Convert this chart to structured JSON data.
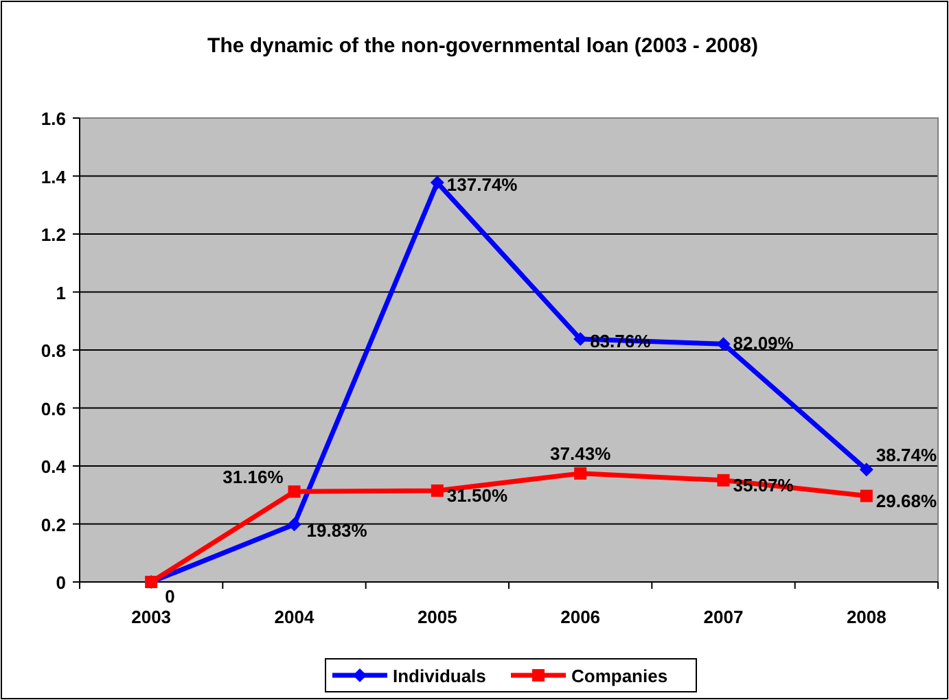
{
  "chart_data": {
    "type": "line",
    "title": "The dynamic of the non-governmental loan (2003 - 2008)",
    "categories": [
      "2003",
      "2004",
      "2005",
      "2006",
      "2007",
      "2008"
    ],
    "series": [
      {
        "name": "Individuals",
        "color": "#0000ff",
        "marker": "diamond",
        "values": [
          0,
          0.1983,
          1.3774,
          0.8376,
          0.8209,
          0.3874
        ],
        "value_labels": [
          "0",
          "19.83%",
          "137.74%",
          "83.76%",
          "82.09%",
          "38.74%"
        ]
      },
      {
        "name": "Companies",
        "color": "#ff0000",
        "marker": "square",
        "values": [
          0,
          0.3116,
          0.315,
          0.3743,
          0.3507,
          0.2968
        ],
        "value_labels": [
          null,
          "31.16%",
          "31.50%",
          "37.43%",
          "35.07%",
          "29.68%"
        ]
      }
    ],
    "ylim": [
      0,
      1.6
    ],
    "yticks": [
      0,
      0.2,
      0.4,
      0.6,
      0.8,
      1,
      1.2,
      1.4,
      1.6
    ],
    "grid": "y",
    "legend": "bottom"
  }
}
